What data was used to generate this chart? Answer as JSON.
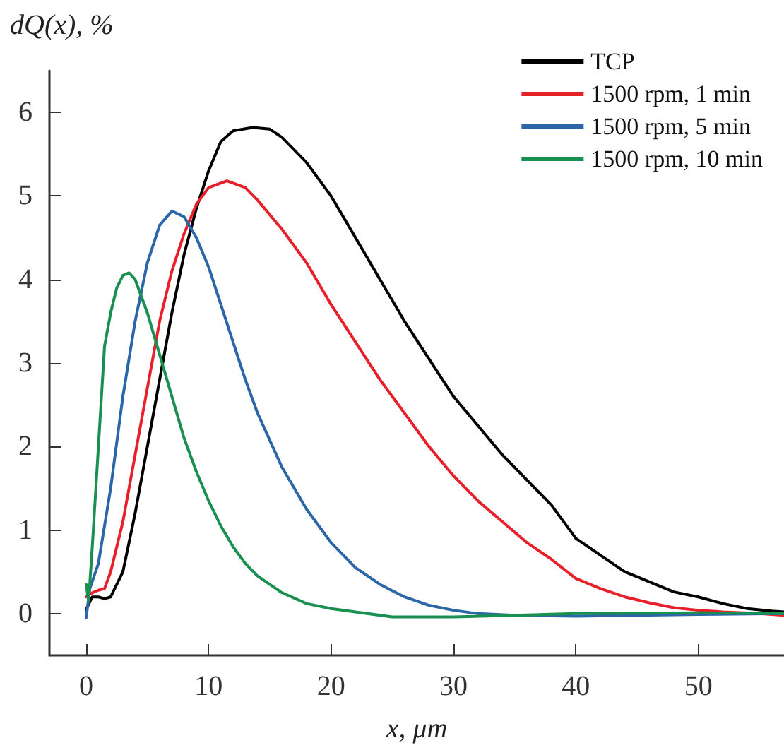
{
  "chart_data": {
    "type": "line",
    "xlabel": "x, μm",
    "ylabel": "dQ(x), %",
    "xlim": [
      -3,
      57
    ],
    "xticks": [
      0,
      10,
      20,
      30,
      40,
      50
    ],
    "ylim": [
      -0.5,
      6.5
    ],
    "yticks": [
      0,
      1,
      2,
      3,
      4,
      5,
      6
    ],
    "grid": false,
    "legend": "top right",
    "marker": "none",
    "line_style": "solid",
    "series": [
      {
        "name": "TCP",
        "color": "#000000",
        "x": [
          0,
          0.5,
          1,
          1.5,
          2,
          3,
          4,
          5,
          6,
          7,
          8,
          9,
          10,
          11,
          12,
          13.6,
          15,
          16,
          18,
          20,
          22,
          24,
          26,
          28,
          30,
          32,
          34,
          36,
          38,
          40,
          42,
          44,
          46,
          48,
          50,
          52,
          54,
          56,
          57
        ],
        "values": [
          0.05,
          0.2,
          0.2,
          0.18,
          0.2,
          0.5,
          1.2,
          2.0,
          2.8,
          3.6,
          4.3,
          4.85,
          5.3,
          5.65,
          5.78,
          5.82,
          5.8,
          5.7,
          5.4,
          5.0,
          4.5,
          4.0,
          3.5,
          3.05,
          2.6,
          2.25,
          1.9,
          1.6,
          1.3,
          0.9,
          0.7,
          0.5,
          0.38,
          0.26,
          0.2,
          0.12,
          0.06,
          0.03,
          0.02
        ]
      },
      {
        "name": "1500 rpm, 1 min",
        "color": "#e8202a",
        "x": [
          0,
          0.5,
          1,
          1.5,
          2,
          3,
          4,
          5,
          6,
          7,
          8,
          9,
          10,
          11.5,
          13,
          14,
          16,
          18,
          20,
          22,
          24,
          26,
          28,
          30,
          32,
          34,
          36,
          38,
          40,
          42,
          44,
          46,
          48,
          50,
          52,
          55,
          57
        ],
        "values": [
          0.2,
          0.25,
          0.28,
          0.3,
          0.5,
          1.1,
          1.9,
          2.7,
          3.5,
          4.1,
          4.55,
          4.9,
          5.1,
          5.18,
          5.1,
          4.95,
          4.6,
          4.2,
          3.7,
          3.25,
          2.8,
          2.4,
          2.0,
          1.65,
          1.35,
          1.1,
          0.85,
          0.65,
          0.42,
          0.3,
          0.2,
          0.13,
          0.07,
          0.04,
          0.02,
          0.0,
          -0.02
        ]
      },
      {
        "name": "1500 rpm, 5 min",
        "color": "#2a66a8",
        "x": [
          0,
          0.3,
          1,
          2,
          3,
          4,
          5,
          6,
          7,
          8,
          9,
          10,
          11,
          12,
          13,
          14,
          16,
          18,
          20,
          22,
          24,
          26,
          28,
          30,
          32,
          35,
          40,
          45,
          50,
          57
        ],
        "values": [
          -0.05,
          0.3,
          0.6,
          1.5,
          2.6,
          3.5,
          4.2,
          4.65,
          4.82,
          4.75,
          4.5,
          4.15,
          3.7,
          3.25,
          2.8,
          2.4,
          1.75,
          1.25,
          0.85,
          0.55,
          0.35,
          0.2,
          0.1,
          0.04,
          0.0,
          -0.02,
          -0.03,
          -0.02,
          -0.01,
          0.0
        ]
      },
      {
        "name": "1500 rpm, 10 min",
        "color": "#1a9050",
        "x": [
          0,
          0.2,
          0.5,
          1,
          1.5,
          2,
          2.5,
          3,
          3.5,
          4,
          5,
          6,
          7,
          8,
          9,
          10,
          11,
          12,
          13,
          14,
          16,
          18,
          20,
          22,
          25,
          30,
          35,
          40,
          50,
          57
        ],
        "values": [
          0.35,
          0.15,
          0.8,
          2.0,
          3.2,
          3.6,
          3.9,
          4.05,
          4.08,
          4.0,
          3.6,
          3.1,
          2.6,
          2.1,
          1.7,
          1.35,
          1.05,
          0.8,
          0.6,
          0.45,
          0.25,
          0.12,
          0.06,
          0.02,
          -0.04,
          -0.04,
          -0.02,
          0.0,
          0.01,
          0.0
        ]
      }
    ]
  }
}
